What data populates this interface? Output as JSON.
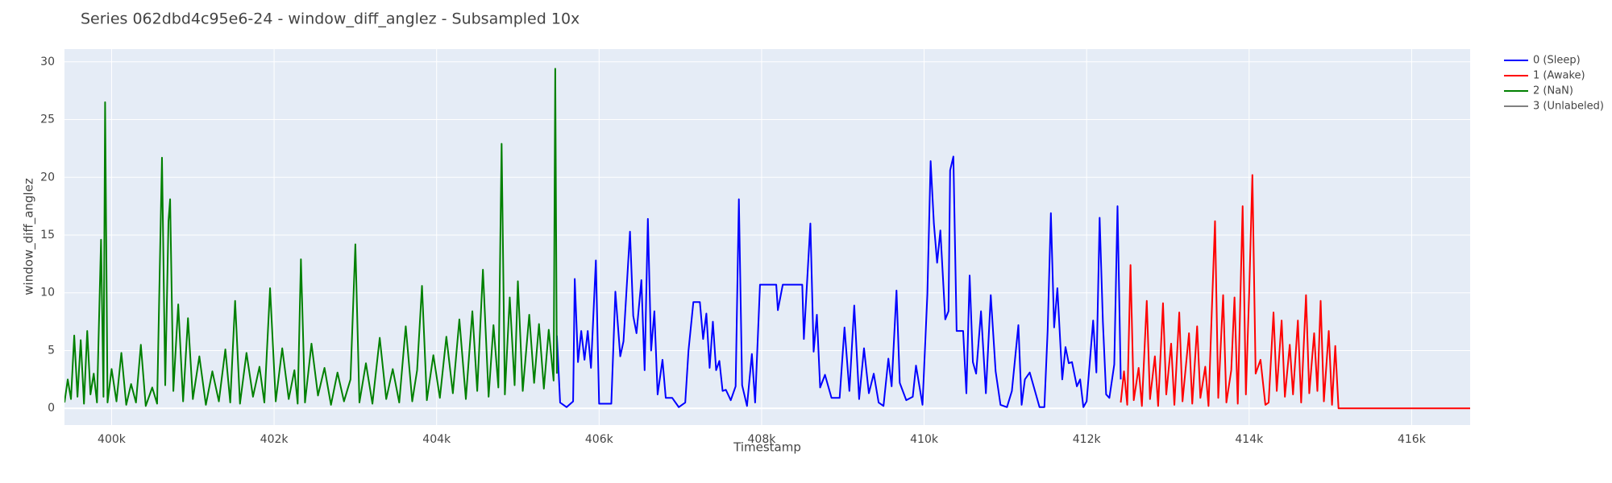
{
  "chart_data": {
    "type": "line",
    "title": "Series 062dbd4c95e6-24 - window_diff_anglez - Subsampled 10x",
    "x_label": "Timestamp",
    "y_label": "window_diff_anglez",
    "xlim": [
      399420,
      416720
    ],
    "ylim": [
      -1.45,
      31.1
    ],
    "xticks": [
      {
        "value": 400000,
        "label": "400k"
      },
      {
        "value": 402000,
        "label": "402k"
      },
      {
        "value": 404000,
        "label": "404k"
      },
      {
        "value": 406000,
        "label": "406k"
      },
      {
        "value": 408000,
        "label": "408k"
      },
      {
        "value": 410000,
        "label": "410k"
      },
      {
        "value": 412000,
        "label": "412k"
      },
      {
        "value": 414000,
        "label": "414k"
      },
      {
        "value": 416000,
        "label": "416k"
      }
    ],
    "yticks": [
      0,
      5,
      10,
      15,
      20,
      25,
      30
    ],
    "grid": true,
    "legend": "right",
    "series": [
      {
        "name": "0 (Sleep)",
        "color": "#0000ff",
        "x": [
          405480,
          405520,
          405600,
          405680,
          405700,
          405740,
          405780,
          405820,
          405860,
          405900,
          405960,
          406000,
          406150,
          406200,
          406260,
          406300,
          406380,
          406420,
          406460,
          406520,
          406560,
          406600,
          406640,
          406680,
          406720,
          406780,
          406820,
          406900,
          406980,
          407060,
          407100,
          407160,
          407240,
          407280,
          407320,
          407360,
          407400,
          407440,
          407480,
          407520,
          407560,
          407620,
          407680,
          407720,
          407760,
          407820,
          407880,
          407920,
          407980,
          408180,
          408200,
          408260,
          408500,
          408520,
          408600,
          408640,
          408680,
          408720,
          408780,
          408860,
          408960,
          409020,
          409080,
          409140,
          409200,
          409260,
          409320,
          409380,
          409440,
          409500,
          409560,
          409600,
          409660,
          409700,
          409780,
          409860,
          409900,
          409980,
          410040,
          410080,
          410120,
          410160,
          410200,
          410260,
          410300,
          410320,
          410360,
          410400,
          410480,
          410520,
          410560,
          410600,
          410640,
          410700,
          410760,
          410820,
          410880,
          410940,
          411020,
          411080,
          411160,
          411200,
          411240,
          411300,
          411380,
          411420,
          411480,
          411520,
          411560,
          411600,
          411640,
          411700,
          411740,
          411780,
          411820,
          411880,
          411920,
          411960,
          412000,
          412080,
          412120,
          412160,
          412200,
          412240,
          412280,
          412340,
          412380,
          412420
        ],
        "values": [
          6.3,
          0.5,
          0.1,
          0.6,
          11.2,
          4,
          6.7,
          4.2,
          6.7,
          3.5,
          12.8,
          0.4,
          0.4,
          10.1,
          4.5,
          5.8,
          15.3,
          8,
          6.5,
          11.1,
          3.3,
          16.4,
          5,
          8.4,
          1.2,
          4.2,
          0.9,
          0.9,
          0.1,
          0.5,
          5,
          9.2,
          9.2,
          6,
          8.2,
          3.5,
          7.5,
          3.3,
          4.1,
          1.5,
          1.6,
          0.7,
          1.9,
          18.1,
          2,
          0.2,
          4.7,
          0.5,
          10.7,
          10.7,
          8.5,
          10.7,
          10.7,
          6,
          16,
          4.9,
          8.1,
          1.8,
          2.9,
          0.9,
          0.9,
          7,
          1.5,
          8.9,
          0.8,
          5.2,
          1.3,
          3,
          0.5,
          0.2,
          4.3,
          1.9,
          10.2,
          2.2,
          0.7,
          1,
          3.7,
          0.3,
          9.9,
          21.4,
          16,
          12.6,
          15.4,
          7.7,
          8.4,
          20.6,
          21.8,
          6.7,
          6.7,
          1.3,
          11.5,
          4,
          3,
          8.4,
          1.3,
          9.8,
          3.2,
          0.3,
          0.1,
          1.5,
          7.2,
          0.3,
          2.5,
          3.1,
          1.1,
          0.1,
          0.1,
          6.7,
          16.9,
          7,
          10.4,
          2.5,
          5.3,
          3.9,
          4,
          1.9,
          2.5,
          0.1,
          0.6,
          7.6,
          3.1,
          16.5,
          7.5,
          1.2,
          0.9,
          3.8,
          17.5,
          2.5
        ]
      },
      {
        "name": "1 (Awake)",
        "color": "#ff0000",
        "x": [
          412420,
          412460,
          412500,
          412540,
          412580,
          412640,
          412680,
          412740,
          412780,
          412840,
          412880,
          412940,
          412980,
          413040,
          413080,
          413140,
          413180,
          413260,
          413300,
          413360,
          413400,
          413460,
          413500,
          413540,
          413580,
          413620,
          413680,
          413720,
          413780,
          413820,
          413860,
          413920,
          413960,
          414000,
          414040,
          414080,
          414140,
          414200,
          414240,
          414300,
          414340,
          414400,
          414440,
          414500,
          414540,
          414600,
          414640,
          414700,
          414740,
          414800,
          414840,
          414880,
          414920,
          414980,
          415020,
          415060,
          415100,
          416720
        ],
        "values": [
          0.5,
          3.2,
          0.3,
          12.4,
          0.7,
          3.5,
          0.2,
          9.3,
          0.8,
          4.5,
          0.2,
          9.1,
          1.2,
          5.6,
          0.3,
          8.3,
          0.6,
          6.5,
          0.4,
          7.1,
          0.9,
          3.6,
          0.2,
          8.3,
          16.2,
          0.9,
          9.8,
          0.5,
          3.3,
          9.6,
          0.4,
          17.5,
          1.2,
          9.9,
          20.2,
          3,
          4.2,
          0.3,
          0.5,
          8.3,
          1.5,
          7.6,
          1,
          5.5,
          1.2,
          7.6,
          0.5,
          9.8,
          1.3,
          6.5,
          1.5,
          9.3,
          0.6,
          6.7,
          0.3,
          5.4,
          0,
          0
        ]
      },
      {
        "name": "2 (NaN)",
        "color": "#008000",
        "x": [
          399420,
          399460,
          399500,
          399540,
          399580,
          399620,
          399660,
          399700,
          399740,
          399780,
          399820,
          399870,
          399900,
          399920,
          399950,
          400000,
          400060,
          400120,
          400180,
          400240,
          400300,
          400360,
          400420,
          400500,
          400560,
          400620,
          400660,
          400700,
          400720,
          400760,
          400820,
          400880,
          400940,
          401000,
          401080,
          401160,
          401240,
          401320,
          401400,
          401460,
          401520,
          401580,
          401660,
          401740,
          401820,
          401880,
          401950,
          402020,
          402100,
          402180,
          402250,
          402290,
          402330,
          402380,
          402460,
          402540,
          402620,
          402700,
          402780,
          402860,
          402940,
          403000,
          403050,
          403130,
          403210,
          403300,
          403380,
          403460,
          403540,
          403620,
          403700,
          403760,
          403820,
          403880,
          403960,
          404040,
          404120,
          404200,
          404280,
          404360,
          404440,
          404500,
          404570,
          404640,
          404700,
          404760,
          404800,
          404840,
          404900,
          404960,
          405000,
          405060,
          405140,
          405200,
          405260,
          405320,
          405380,
          405440,
          405460,
          405480
        ],
        "values": [
          0.5,
          2.5,
          0.8,
          6.3,
          1,
          5.9,
          0.4,
          6.7,
          1.2,
          3,
          0.5,
          14.6,
          1,
          26.5,
          0.5,
          3.4,
          0.6,
          4.8,
          0.3,
          2.1,
          0.5,
          5.5,
          0.2,
          1.8,
          0.4,
          21.7,
          2,
          16.2,
          18.1,
          1.5,
          9,
          0.6,
          7.8,
          0.8,
          4.5,
          0.3,
          3.2,
          0.6,
          5.1,
          0.5,
          9.3,
          0.4,
          4.8,
          1,
          3.6,
          0.5,
          10.4,
          0.6,
          5.2,
          0.8,
          3.3,
          0.4,
          12.9,
          0.5,
          5.6,
          1.1,
          3.5,
          0.3,
          3.1,
          0.6,
          2.5,
          14.2,
          0.5,
          3.9,
          0.4,
          6.1,
          0.8,
          3.4,
          0.5,
          7.1,
          0.6,
          3.3,
          10.6,
          0.7,
          4.6,
          0.9,
          6.2,
          1.3,
          7.7,
          0.8,
          8.4,
          1.5,
          12,
          1,
          7.2,
          1.8,
          22.9,
          1.2,
          9.6,
          2,
          11,
          1.5,
          8.1,
          2.2,
          7.3,
          1.7,
          6.8,
          2.4,
          29.4,
          3
        ]
      },
      {
        "name": "3 (Unlabeled)",
        "color": "#808080",
        "x": [],
        "values": []
      }
    ]
  }
}
